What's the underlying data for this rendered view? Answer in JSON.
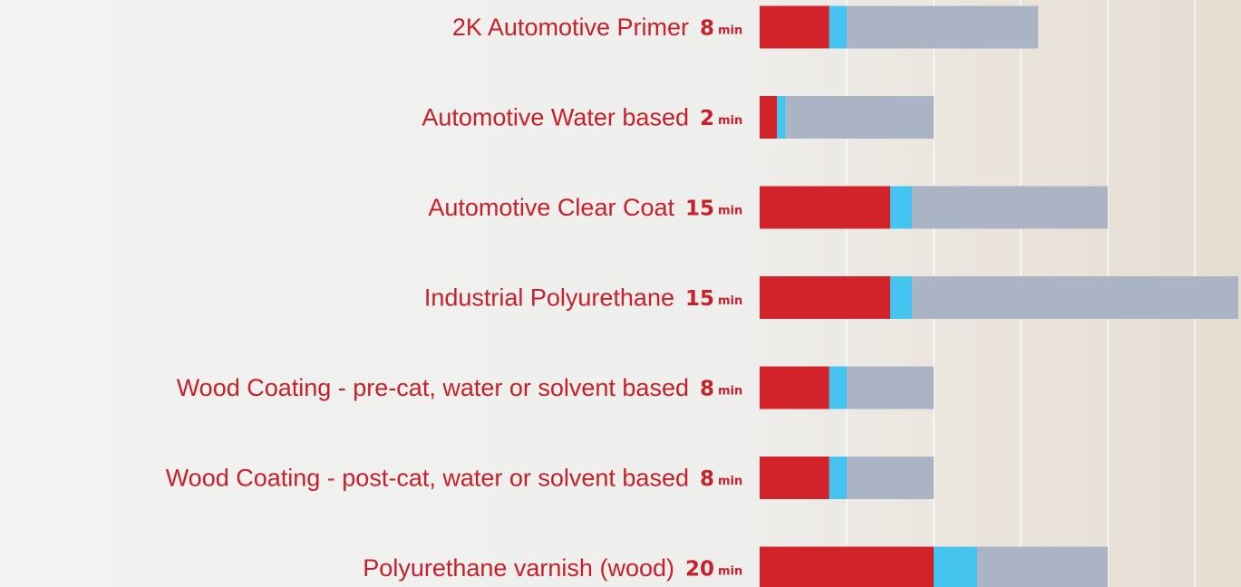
{
  "chart_data": {
    "type": "stacked-barh",
    "categories": [
      "2K Automotive Primer",
      "Automotive Water based",
      "Automotive Clear Coat",
      "Industrial Polyurethane",
      "Wood Coating - pre-cat, water or solvent based",
      "Wood Coating - post-cat, water or solvent based",
      "Polyurethane varnish (wood)"
    ],
    "unit": "min",
    "series": [
      {
        "color": "#d2232a",
        "values": [
          8,
          2,
          15,
          15,
          8,
          8,
          20
        ]
      },
      {
        "color": "#45c4f0",
        "values": [
          2,
          1,
          2.5,
          2.5,
          2,
          2,
          5
        ]
      },
      {
        "color": "#abb4c4",
        "values": [
          22,
          17,
          22.5,
          37.5,
          10,
          10,
          15
        ]
      }
    ],
    "xlim": [
      0,
      55
    ],
    "grid_x": [
      10,
      20,
      30,
      40,
      50
    ]
  }
}
